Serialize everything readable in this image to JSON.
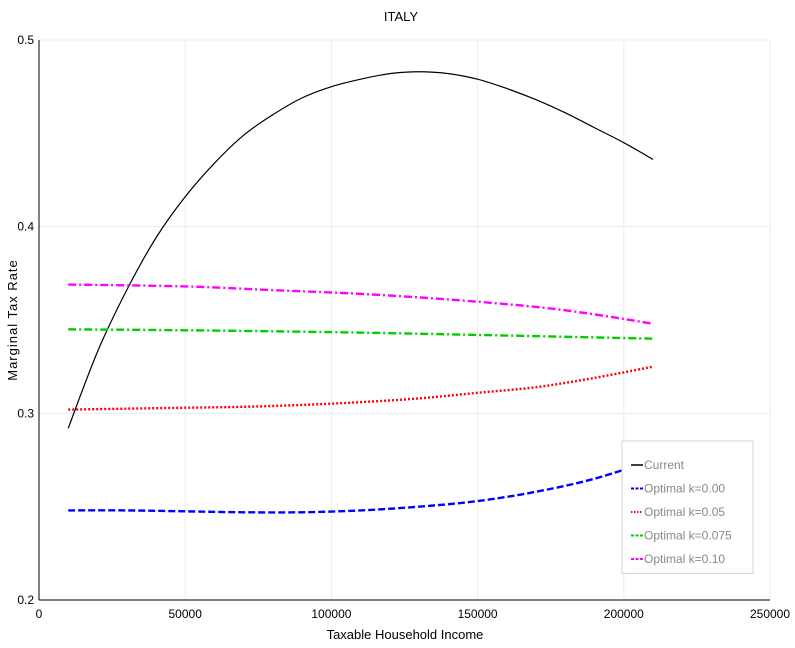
{
  "chart_data": {
    "type": "line",
    "title": "ITALY",
    "xlabel": "Taxable Household Income",
    "ylabel": "Marginal Tax Rate",
    "xlim": [
      0,
      250000
    ],
    "ylim": [
      0.2,
      0.5
    ],
    "xticks": [
      "0",
      "50000",
      "100000",
      "150000",
      "200000",
      "250000"
    ],
    "yticks": [
      "0.2",
      "0.3",
      "0.4",
      "0.5"
    ],
    "grid": true,
    "legend_position": "bottom-right",
    "series": [
      {
        "name": "Current",
        "color": "#000000",
        "dash": "solid",
        "x": [
          10000,
          20000,
          30000,
          40000,
          50000,
          60000,
          70000,
          80000,
          90000,
          100000,
          110000,
          120000,
          130000,
          140000,
          150000,
          160000,
          170000,
          180000,
          190000,
          200000,
          210000
        ],
        "y": [
          0.292,
          0.333,
          0.366,
          0.394,
          0.416,
          0.434,
          0.449,
          0.46,
          0.469,
          0.475,
          0.479,
          0.482,
          0.483,
          0.482,
          0.479,
          0.474,
          0.468,
          0.461,
          0.453,
          0.445,
          0.436
        ]
      },
      {
        "name": "Optimal k=0.00",
        "color": "#0000ff",
        "dash": "dashed",
        "x": [
          10000,
          30000,
          50000,
          70000,
          90000,
          110000,
          130000,
          150000,
          170000,
          190000,
          210000
        ],
        "y": [
          0.248,
          0.248,
          0.2475,
          0.247,
          0.247,
          0.248,
          0.25,
          0.253,
          0.258,
          0.265,
          0.275
        ]
      },
      {
        "name": "Optimal k=0.05",
        "color": "#ff0000",
        "dash": "dotted",
        "x": [
          10000,
          30000,
          50000,
          70000,
          90000,
          110000,
          130000,
          150000,
          170000,
          190000,
          210000
        ],
        "y": [
          0.302,
          0.3025,
          0.303,
          0.3035,
          0.3045,
          0.306,
          0.308,
          0.311,
          0.314,
          0.319,
          0.325
        ]
      },
      {
        "name": "Optimal k=0.075",
        "color": "#00cc00",
        "dash": "dashdot",
        "x": [
          10000,
          50000,
          100000,
          150000,
          210000
        ],
        "y": [
          0.345,
          0.3445,
          0.3435,
          0.342,
          0.34
        ]
      },
      {
        "name": "Optimal k=0.10",
        "color": "#ff00ff",
        "dash": "dashdot",
        "x": [
          10000,
          50000,
          80000,
          110000,
          140000,
          170000,
          190000,
          210000
        ],
        "y": [
          0.369,
          0.368,
          0.366,
          0.364,
          0.361,
          0.357,
          0.353,
          0.348
        ]
      }
    ]
  }
}
